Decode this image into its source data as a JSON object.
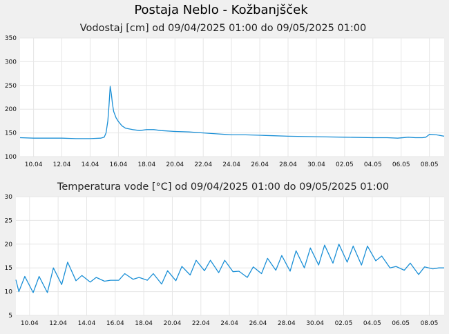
{
  "page": {
    "title": "Postaja Neblo - Kožbanjšček"
  },
  "colors": {
    "background": "#f0f0f0",
    "plot_background": "#ffffff",
    "grid": "#e6e6e6",
    "series": "#1a8fd6"
  },
  "chart_data": [
    {
      "type": "line",
      "title": "Vodostaj [cm] od 09/04/2025 01:00 do 09/05/2025 01:00",
      "xlabel": "",
      "ylabel": "",
      "xlim": [
        "2025-04-09 01:00",
        "2025-05-09 01:00"
      ],
      "ylim": [
        100,
        350
      ],
      "yticks": [
        100,
        150,
        200,
        250,
        300,
        350
      ],
      "xticks": [
        "10.04",
        "12.04",
        "14.04",
        "16.04",
        "18.04",
        "20.04",
        "22.04",
        "24.04",
        "26.04",
        "28.04",
        "30.04",
        "02.05",
        "04.05",
        "06.05",
        "08.05"
      ],
      "grid": true,
      "legend": "none",
      "series": [
        {
          "x": [
            "2025-04-09 01:00",
            "2025-04-10 00:00",
            "2025-04-11 00:00",
            "2025-04-12 00:00",
            "2025-04-13 00:00",
            "2025-04-14 00:00",
            "2025-04-14 18:00",
            "2025-04-15 00:00",
            "2025-04-15 03:00",
            "2025-04-15 06:00",
            "2025-04-15 08:00",
            "2025-04-15 10:00",
            "2025-04-15 12:00",
            "2025-04-15 14:00",
            "2025-04-15 16:00",
            "2025-04-15 20:00",
            "2025-04-16 00:00",
            "2025-04-16 06:00",
            "2025-04-16 12:00",
            "2025-04-17 00:00",
            "2025-04-17 12:00",
            "2025-04-18 00:00",
            "2025-04-18 12:00",
            "2025-04-19 00:00",
            "2025-04-20 00:00",
            "2025-04-21 00:00",
            "2025-04-22 00:00",
            "2025-04-23 00:00",
            "2025-04-23 12:00",
            "2025-04-24 00:00",
            "2025-04-25 00:00",
            "2025-04-26 00:00",
            "2025-04-27 00:00",
            "2025-04-28 00:00",
            "2025-04-30 00:00",
            "2025-05-02 00:00",
            "2025-05-04 00:00",
            "2025-05-05 00:00",
            "2025-05-05 18:00",
            "2025-05-06 12:00",
            "2025-05-07 00:00",
            "2025-05-07 12:00",
            "2025-05-07 18:00",
            "2025-05-08 00:00",
            "2025-05-08 12:00",
            "2025-05-09 01:00"
          ],
          "y": [
            140,
            139,
            139,
            139,
            138,
            138,
            139,
            141,
            150,
            175,
            208,
            248,
            232,
            210,
            195,
            182,
            174,
            165,
            160,
            157,
            155,
            157,
            157,
            155,
            153,
            152,
            150,
            148,
            147,
            146,
            146,
            145,
            144,
            143,
            142,
            141,
            140,
            140,
            139,
            141,
            140,
            140,
            141,
            147,
            146,
            143
          ]
        }
      ]
    },
    {
      "type": "line",
      "title": "Temperatura vode [°C] od 09/04/2025 01:00 do 09/05/2025 01:00",
      "xlabel": "",
      "ylabel": "",
      "xlim": [
        "2025-04-09 01:00",
        "2025-05-09 01:00"
      ],
      "ylim": [
        5,
        30
      ],
      "yticks": [
        5,
        10,
        15,
        20,
        25,
        30
      ],
      "xticks": [
        "10.04",
        "12.04",
        "14.04",
        "16.04",
        "18.04",
        "20.04",
        "22.04",
        "24.04",
        "26.04",
        "28.04",
        "30.04",
        "02.05",
        "04.05",
        "06.05",
        "08.05"
      ],
      "grid": true,
      "legend": "none",
      "series": [
        {
          "x": [
            "2025-04-09 01:00",
            "2025-04-09 06:00",
            "2025-04-09 16:00",
            "2025-04-10 06:00",
            "2025-04-10 16:00",
            "2025-04-11 06:00",
            "2025-04-11 16:00",
            "2025-04-12 06:00",
            "2025-04-12 16:00",
            "2025-04-13 06:00",
            "2025-04-13 16:00",
            "2025-04-14 06:00",
            "2025-04-14 16:00",
            "2025-04-15 06:00",
            "2025-04-15 16:00",
            "2025-04-16 06:00",
            "2025-04-16 16:00",
            "2025-04-17 06:00",
            "2025-04-17 16:00",
            "2025-04-18 06:00",
            "2025-04-18 16:00",
            "2025-04-19 06:00",
            "2025-04-19 16:00",
            "2025-04-20 06:00",
            "2025-04-20 16:00",
            "2025-04-21 06:00",
            "2025-04-21 16:00",
            "2025-04-22 06:00",
            "2025-04-22 16:00",
            "2025-04-23 06:00",
            "2025-04-23 16:00",
            "2025-04-24 06:00",
            "2025-04-24 16:00",
            "2025-04-25 06:00",
            "2025-04-25 16:00",
            "2025-04-26 06:00",
            "2025-04-26 16:00",
            "2025-04-27 06:00",
            "2025-04-27 16:00",
            "2025-04-28 06:00",
            "2025-04-28 16:00",
            "2025-04-29 06:00",
            "2025-04-29 16:00",
            "2025-04-30 06:00",
            "2025-04-30 16:00",
            "2025-05-01 06:00",
            "2025-05-01 16:00",
            "2025-05-02 06:00",
            "2025-05-02 16:00",
            "2025-05-03 06:00",
            "2025-05-03 16:00",
            "2025-05-04 06:00",
            "2025-05-04 16:00",
            "2025-05-05 06:00",
            "2025-05-05 16:00",
            "2025-05-06 06:00",
            "2025-05-06 16:00",
            "2025-05-07 06:00",
            "2025-05-07 16:00",
            "2025-05-08 06:00",
            "2025-05-08 16:00",
            "2025-05-09 01:00"
          ],
          "y": [
            12.5,
            10.0,
            13.2,
            9.8,
            13.2,
            9.8,
            15.0,
            11.5,
            16.2,
            12.3,
            13.4,
            12.0,
            13.0,
            12.2,
            12.4,
            12.4,
            13.8,
            12.6,
            13.0,
            12.4,
            13.8,
            11.6,
            14.4,
            12.3,
            15.3,
            13.5,
            16.6,
            14.4,
            16.6,
            14.0,
            16.6,
            14.2,
            14.3,
            13.0,
            15.2,
            13.8,
            17.0,
            14.5,
            17.6,
            14.3,
            18.6,
            15.0,
            19.2,
            15.6,
            19.8,
            16.0,
            20.0,
            16.2,
            19.6,
            15.6,
            19.6,
            16.5,
            17.5,
            15.0,
            15.3,
            14.5,
            16.0,
            13.6,
            15.2,
            14.8,
            15.0,
            15.0
          ]
        }
      ]
    }
  ]
}
